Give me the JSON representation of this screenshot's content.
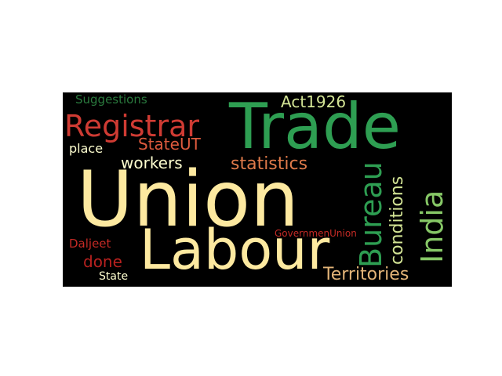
{
  "words": [
    {
      "text": "Union",
      "color": "#fde9a0"
    },
    {
      "text": "Trade",
      "color": "#2e9e52"
    },
    {
      "text": "Labour",
      "color": "#fde9a0"
    },
    {
      "text": "Registrar",
      "color": "#cf3b33"
    },
    {
      "text": "Bureau",
      "color": "#2e9e52"
    },
    {
      "text": "India",
      "color": "#86c766"
    },
    {
      "text": "statistics",
      "color": "#e07a4a"
    },
    {
      "text": "conditions",
      "color": "#d3e495"
    },
    {
      "text": "Territories",
      "color": "#e3b478"
    },
    {
      "text": "StateUT",
      "color": "#dd5a3d"
    },
    {
      "text": "workers",
      "color": "#ffffd0"
    },
    {
      "text": "Act1926",
      "color": "#d3e495"
    },
    {
      "text": "Suggestions",
      "color": "#2a7a3e"
    },
    {
      "text": "place",
      "color": "#ffffd0"
    },
    {
      "text": "done",
      "color": "#b8211f"
    },
    {
      "text": "Daljeet",
      "color": "#c42a25"
    },
    {
      "text": "GovernmenUnion",
      "color": "#c42a25"
    },
    {
      "text": "State",
      "color": "#ffffd0"
    }
  ]
}
